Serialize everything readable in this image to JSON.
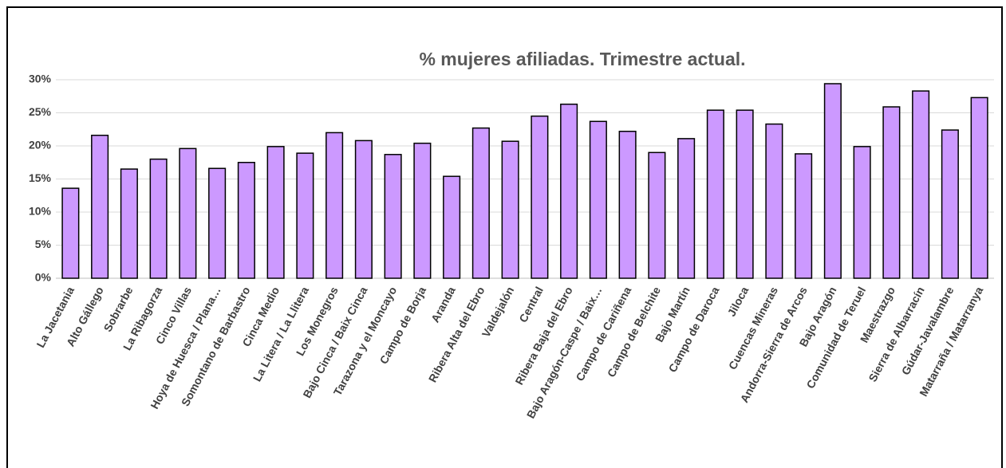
{
  "chart_data": {
    "type": "bar",
    "title": "% mujeres afiliadas. Trimestre actual.",
    "categories": [
      "La Jacetania",
      "Alto Gállego",
      "Sobrarbe",
      "La Ribagorza",
      "Cinco Villas",
      "Hoya de Huesca / Plana…",
      "Somontano de Barbastro",
      "Cinca Medio",
      "La Litera / La Llitera",
      "Los Monegros",
      "Bajo Cinca / Baix Cinca",
      "Tarazona y el Moncayo",
      "Campo de Borja",
      "Aranda",
      "Ribera Alta del Ebro",
      "Valdejalón",
      "Central",
      "Ribera Baja del Ebro",
      "Bajo Aragón-Caspe / Baix…",
      "Campo de Cariñena",
      "Campo de Belchite",
      "Bajo Martín",
      "Campo de Daroca",
      "Jiloca",
      "Cuencas Mineras",
      "Andorra-Sierra de Arcos",
      "Bajo Aragón",
      "Comunidad de Teruel",
      "Maestrazgo",
      "Sierra de Albarracín",
      "Gúdar-Javalambre",
      "Matarraña / Matarranya"
    ],
    "values": [
      13.6,
      21.6,
      16.5,
      18.0,
      19.6,
      16.6,
      17.5,
      19.9,
      18.9,
      22.0,
      20.8,
      18.7,
      20.4,
      15.4,
      22.7,
      20.7,
      24.5,
      26.3,
      23.7,
      22.2,
      19.0,
      21.1,
      25.4,
      25.4,
      23.3,
      18.8,
      29.4,
      19.9,
      25.9,
      28.3,
      22.4,
      27.3
    ],
    "color": "#cc99ff",
    "ylim": [
      0,
      30
    ],
    "yticks": [
      {
        "value": 0,
        "label": "0%"
      },
      {
        "value": 5,
        "label": "5%"
      },
      {
        "value": 10,
        "label": "10%"
      },
      {
        "value": 15,
        "label": "15%"
      },
      {
        "value": 20,
        "label": "20%"
      },
      {
        "value": 25,
        "label": "25%"
      },
      {
        "value": 30,
        "label": "30%"
      }
    ],
    "grid": true
  }
}
